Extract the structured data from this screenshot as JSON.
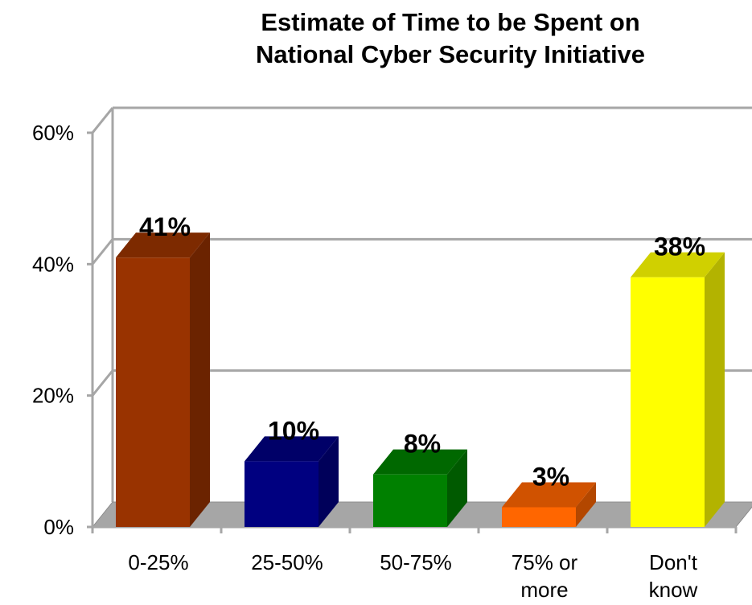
{
  "chart_data": {
    "type": "bar",
    "title": "Estimate of Time to be Spent on National Cyber Security Initiative",
    "title_lines": [
      "Estimate of Time to be Spent on",
      "National Cyber Security Initiative"
    ],
    "categories": [
      "0-25%",
      "25-50%",
      "50-75%",
      "75% or more",
      "Don't know"
    ],
    "category_lines": [
      [
        "0-25%"
      ],
      [
        "25-50%"
      ],
      [
        "50-75%"
      ],
      [
        "75% or",
        "more"
      ],
      [
        "Don't",
        "know"
      ]
    ],
    "values": [
      41,
      10,
      8,
      3,
      38
    ],
    "data_labels": [
      "41%",
      "10%",
      "8%",
      "3%",
      "38%"
    ],
    "colors": [
      "#993300",
      "#000080",
      "#008000",
      "#ff6600",
      "#ffff00"
    ],
    "side_colors": [
      "#6b2300",
      "#00005a",
      "#005a00",
      "#b34700",
      "#b3b300"
    ],
    "top_colors": [
      "#7d2a00",
      "#000068",
      "#006800",
      "#d05200",
      "#d0d000"
    ],
    "yticks": [
      0,
      20,
      40,
      60
    ],
    "ytick_labels": [
      "0%",
      "20%",
      "40%",
      "60%"
    ],
    "ylim": [
      0,
      60
    ],
    "xlabel": "",
    "ylabel": "",
    "grid": true,
    "style": "3d-bar"
  }
}
